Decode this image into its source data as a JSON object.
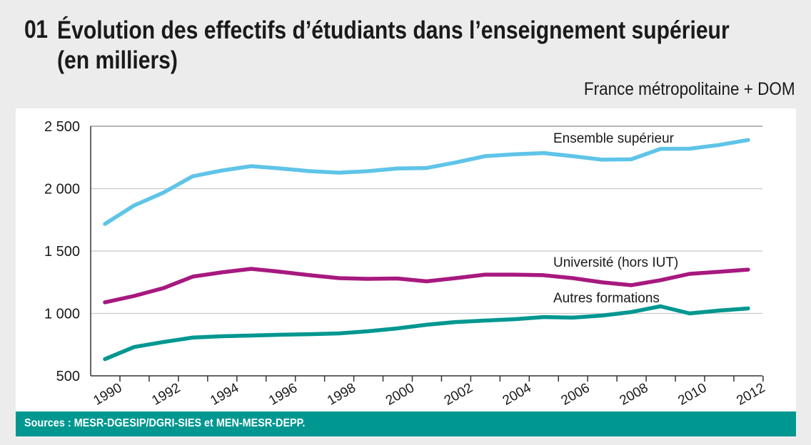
{
  "header": {
    "number": "01",
    "title_line1": "Évolution des effectifs d’étudiants dans l’enseignement supérieur",
    "title_line2": "(en milliers)",
    "subtitle": "France métropolitaine + DOM"
  },
  "footer": {
    "source": "Sources : MESR-DGESIP/DGRI-SIES et MEN-MESR-DEPP."
  },
  "colors": {
    "ensemble": "#5fc4e8",
    "universite": "#a7197f",
    "autres": "#009790",
    "source_bar": "#009790",
    "background": "#ececec"
  },
  "chart_data": {
    "type": "line",
    "title": "Évolution des effectifs d’étudiants dans l’enseignement supérieur (en milliers)",
    "subtitle": "France métropolitaine + DOM",
    "xlabel": "",
    "ylabel": "",
    "ylim": [
      500,
      2500
    ],
    "yticks": [
      500,
      1000,
      1500,
      2000,
      2500
    ],
    "ytick_labels": [
      "500",
      "1 000",
      "1 500",
      "2 000",
      "2 500"
    ],
    "x": [
      1990,
      1991,
      1992,
      1993,
      1994,
      1995,
      1996,
      1997,
      1998,
      1999,
      2000,
      2001,
      2002,
      2003,
      2004,
      2005,
      2006,
      2007,
      2008,
      2009,
      2010,
      2011,
      2012
    ],
    "xtick_labels": [
      "1990",
      "1992",
      "1994",
      "1996",
      "1998",
      "2000",
      "2002",
      "2004",
      "2006",
      "2008",
      "2010",
      "2012"
    ],
    "grid": "horizontal",
    "legend": "inline labels",
    "series": [
      {
        "name": "Ensemble supérieur",
        "color": "#5fc4e8",
        "values": [
          1717,
          1865,
          1968,
          2099,
          2145,
          2180,
          2162,
          2140,
          2128,
          2140,
          2162,
          2165,
          2210,
          2260,
          2275,
          2285,
          2260,
          2232,
          2235,
          2318,
          2320,
          2350,
          2390
        ]
      },
      {
        "name": "Université (hors IUT)",
        "color": "#a7197f",
        "values": [
          1089,
          1140,
          1203,
          1295,
          1329,
          1357,
          1334,
          1306,
          1283,
          1277,
          1280,
          1257,
          1283,
          1311,
          1311,
          1306,
          1283,
          1249,
          1226,
          1266,
          1317,
          1334,
          1351
        ]
      },
      {
        "name": "Autres formations",
        "color": "#009790",
        "values": [
          634,
          731,
          771,
          806,
          817,
          823,
          829,
          834,
          840,
          857,
          880,
          909,
          931,
          943,
          954,
          971,
          966,
          983,
          1011,
          1057,
          1000,
          1023,
          1040
        ]
      }
    ],
    "source": "Sources : MESR-DGESIP/DGRI-SIES et MEN-MESR-DEPP."
  }
}
